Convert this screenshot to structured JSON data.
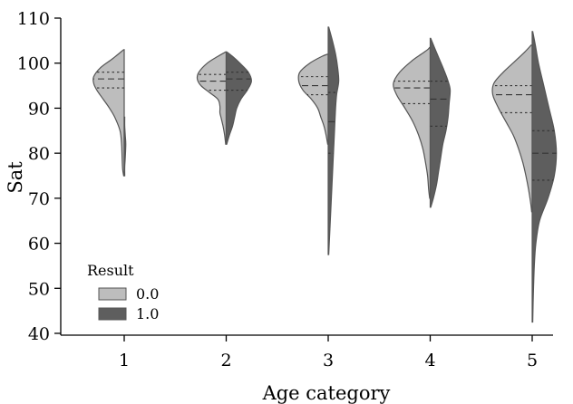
{
  "colors": {
    "result_0": "#bdbdbd",
    "result_1": "#5e5e5e",
    "outline": "#555555",
    "axis": "#000000"
  },
  "chart_data": {
    "type": "violin",
    "title": "",
    "xlabel": "Age category",
    "ylabel": "Sat",
    "categories": [
      "1",
      "2",
      "3",
      "4",
      "5"
    ],
    "y_ticks": [
      "40",
      "50",
      "60",
      "70",
      "80",
      "90",
      "100",
      "110"
    ],
    "ylim": [
      40,
      110
    ],
    "grid": false,
    "legend": {
      "title": "Result",
      "placement": "lower-left",
      "entries": [
        "0.0",
        "1.0"
      ]
    },
    "series": [
      {
        "name": "0.0",
        "side": "left",
        "violins": [
          {
            "category": "1",
            "profile": [
              [
                75,
                0.01
              ],
              [
                76.5,
                0.03
              ],
              [
                79,
                0.04
              ],
              [
                82,
                0.05
              ],
              [
                85,
                0.08
              ],
              [
                88,
                0.18
              ],
              [
                90,
                0.28
              ],
              [
                92,
                0.4
              ],
              [
                94,
                0.52
              ],
              [
                95.5,
                0.58
              ],
              [
                97,
                0.58
              ],
              [
                99,
                0.45
              ],
              [
                101,
                0.22
              ],
              [
                103,
                0.01
              ]
            ],
            "quartiles": [
              94.5,
              96.5,
              98
            ]
          },
          {
            "category": "2",
            "profile": [
              [
                82,
                0.01
              ],
              [
                84,
                0.03
              ],
              [
                86,
                0.06
              ],
              [
                88,
                0.1
              ],
              [
                89,
                0.12
              ],
              [
                90.5,
                0.12
              ],
              [
                92,
                0.16
              ],
              [
                93.5,
                0.32
              ],
              [
                95,
                0.48
              ],
              [
                96.5,
                0.55
              ],
              [
                98,
                0.52
              ],
              [
                100,
                0.36
              ],
              [
                101.5,
                0.16
              ],
              [
                102.5,
                0.01
              ]
            ],
            "quartiles": [
              94,
              96,
              97.5
            ]
          },
          {
            "category": "3",
            "profile": [
              [
                82,
                0.01
              ],
              [
                84,
                0.04
              ],
              [
                86,
                0.08
              ],
              [
                88,
                0.14
              ],
              [
                90,
                0.2
              ],
              [
                92,
                0.32
              ],
              [
                94,
                0.48
              ],
              [
                96,
                0.56
              ],
              [
                98,
                0.54
              ],
              [
                100,
                0.35
              ],
              [
                101.5,
                0.12
              ],
              [
                102,
                0.01
              ]
            ],
            "quartiles": [
              93,
              95,
              97
            ]
          },
          {
            "category": "4",
            "profile": [
              [
                70,
                0.01
              ],
              [
                72,
                0.03
              ],
              [
                75,
                0.05
              ],
              [
                78,
                0.09
              ],
              [
                81,
                0.14
              ],
              [
                84,
                0.22
              ],
              [
                87,
                0.33
              ],
              [
                90,
                0.48
              ],
              [
                93,
                0.64
              ],
              [
                95.5,
                0.7
              ],
              [
                98,
                0.58
              ],
              [
                100.5,
                0.35
              ],
              [
                102,
                0.17
              ],
              [
                103,
                0.05
              ],
              [
                103.5,
                0.01
              ]
            ],
            "quartiles": [
              91,
              94.5,
              96
            ]
          },
          {
            "category": "5",
            "profile": [
              [
                67,
                0.01
              ],
              [
                69,
                0.03
              ],
              [
                72,
                0.07
              ],
              [
                75,
                0.12
              ],
              [
                78,
                0.18
              ],
              [
                81,
                0.26
              ],
              [
                84,
                0.36
              ],
              [
                87,
                0.5
              ],
              [
                90,
                0.64
              ],
              [
                93,
                0.75
              ],
              [
                95.5,
                0.73
              ],
              [
                98,
                0.55
              ],
              [
                100.5,
                0.32
              ],
              [
                102.5,
                0.14
              ],
              [
                104,
                0.02
              ]
            ],
            "quartiles": [
              89,
              93,
              95
            ]
          }
        ]
      },
      {
        "name": "1.0",
        "side": "right",
        "violins": [
          {
            "category": "1",
            "profile": [
              [
                75,
                0.01
              ],
              [
                77,
                0.01
              ],
              [
                79,
                0.02
              ],
              [
                82,
                0.03
              ],
              [
                84,
                0.02
              ],
              [
                86,
                0.01
              ],
              [
                88,
                0.01
              ]
            ],
            "quartiles": []
          },
          {
            "category": "2",
            "profile": [
              [
                82,
                0.01
              ],
              [
                84,
                0.06
              ],
              [
                86,
                0.12
              ],
              [
                88,
                0.16
              ],
              [
                90,
                0.2
              ],
              [
                92,
                0.28
              ],
              [
                94,
                0.4
              ],
              [
                96,
                0.48
              ],
              [
                98,
                0.42
              ],
              [
                100,
                0.26
              ],
              [
                101.5,
                0.12
              ],
              [
                102.5,
                0.01
              ]
            ],
            "quartiles": [
              94,
              96.5,
              98
            ]
          },
          {
            "category": "3",
            "profile": [
              [
                57.5,
                0.01
              ],
              [
                60,
                0.02
              ],
              [
                65,
                0.04
              ],
              [
                70,
                0.06
              ],
              [
                75,
                0.08
              ],
              [
                80,
                0.1
              ],
              [
                85,
                0.12
              ],
              [
                90,
                0.14
              ],
              [
                93,
                0.16
              ],
              [
                96,
                0.2
              ],
              [
                99,
                0.18
              ],
              [
                102,
                0.14
              ],
              [
                105,
                0.08
              ],
              [
                108,
                0.01
              ]
            ],
            "quartiles": [
              80,
              87,
              93.5
            ]
          },
          {
            "category": "4",
            "profile": [
              [
                68,
                0.01
              ],
              [
                70,
                0.06
              ],
              [
                73,
                0.12
              ],
              [
                76,
                0.16
              ],
              [
                79,
                0.2
              ],
              [
                82,
                0.24
              ],
              [
                85,
                0.3
              ],
              [
                88,
                0.34
              ],
              [
                91,
                0.36
              ],
              [
                94,
                0.38
              ],
              [
                96,
                0.34
              ],
              [
                98.5,
                0.26
              ],
              [
                101,
                0.17
              ],
              [
                103.5,
                0.08
              ],
              [
                105.5,
                0.01
              ]
            ],
            "quartiles": [
              86,
              92,
              96
            ]
          },
          {
            "category": "5",
            "profile": [
              [
                42.5,
                0.01
              ],
              [
                48,
                0.02
              ],
              [
                55,
                0.04
              ],
              [
                60,
                0.07
              ],
              [
                65,
                0.14
              ],
              [
                70,
                0.3
              ],
              [
                75,
                0.42
              ],
              [
                80,
                0.46
              ],
              [
                85,
                0.42
              ],
              [
                90,
                0.32
              ],
              [
                95,
                0.22
              ],
              [
                100,
                0.12
              ],
              [
                104,
                0.06
              ],
              [
                107,
                0.01
              ]
            ],
            "quartiles": [
              74,
              80,
              85
            ]
          }
        ]
      }
    ]
  }
}
